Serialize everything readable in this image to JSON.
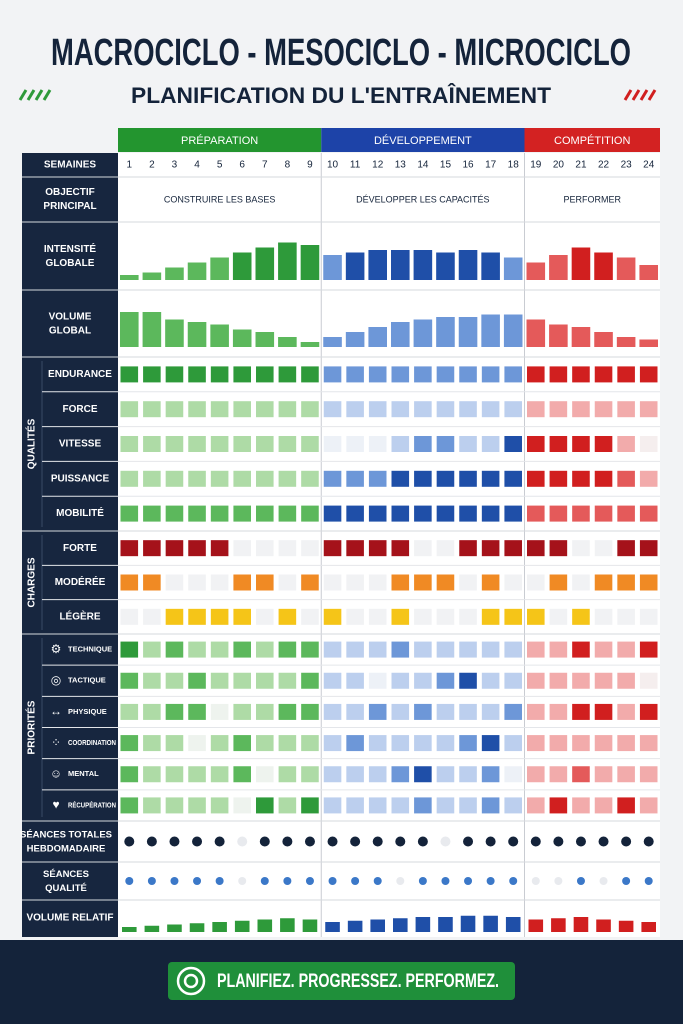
{
  "header": {
    "title": "MACROCICLO - MESOCICLO - MICROCICLO",
    "subtitle": "PLANIFICATION DU L'ENTRAÎNEMENT"
  },
  "phases": [
    {
      "name": "PRÉPARATION",
      "weeks": 9,
      "color": "#23952f",
      "shades": [
        "#eef3ee",
        "#aedba6",
        "#5cb85c",
        "#2e9a3a"
      ],
      "objective": "CONSTRUIRE LES BASES"
    },
    {
      "name": "DÉVELOPPEMENT",
      "weeks": 9,
      "color": "#1d43a8",
      "shades": [
        "#edf1f7",
        "#bccfee",
        "#6d97d8",
        "#1f4fa8"
      ],
      "objective": "DÉVELOPPER LES CAPACITÉS"
    },
    {
      "name": "COMPÉTITION",
      "weeks": 6,
      "color": "#d32222",
      "shades": [
        "#f5eeee",
        "#f2abab",
        "#e45a5a",
        "#d11f1f"
      ],
      "objective": "PERFORMER"
    }
  ],
  "weeks_label": "SEMAINES",
  "weeks": [
    1,
    2,
    3,
    4,
    5,
    6,
    7,
    8,
    9,
    10,
    11,
    12,
    13,
    14,
    15,
    16,
    17,
    18,
    19,
    20,
    21,
    22,
    23,
    24
  ],
  "objective_label": "OBJECTIF PRINCIPAL",
  "bars": [
    {
      "label": "INTENSITÉ GLOBALE",
      "values": [
        1,
        1.5,
        2.5,
        3.5,
        4.5,
        5.5,
        6.5,
        7.5,
        7,
        5,
        5.5,
        6,
        6,
        6,
        5.5,
        6,
        5.5,
        4.5,
        3.5,
        5,
        6.5,
        5.5,
        4.5,
        3
      ]
    },
    {
      "label": "VOLUME GLOBAL",
      "values": [
        7,
        7,
        5.5,
        5,
        4.5,
        3.5,
        3,
        2,
        1,
        2,
        3,
        4,
        5,
        5.5,
        6,
        6,
        6.5,
        6.5,
        5.5,
        4.5,
        4,
        3,
        2,
        1.5
      ]
    }
  ],
  "groups": [
    {
      "name": "QUALITÉS",
      "rows": [
        {
          "label": "ENDURANCE",
          "levels": [
            3,
            3,
            3,
            3,
            3,
            3,
            3,
            3,
            3,
            2,
            2,
            2,
            2,
            2,
            2,
            2,
            2,
            2,
            3,
            3,
            3,
            3,
            3,
            3
          ]
        },
        {
          "label": "FORCE",
          "levels": [
            1,
            1,
            1,
            1,
            1,
            1,
            1,
            1,
            1,
            1,
            1,
            1,
            1,
            1,
            1,
            1,
            1,
            1,
            1,
            1,
            1,
            1,
            1,
            1
          ]
        },
        {
          "label": "VITESSE",
          "levels": [
            1,
            1,
            1,
            1,
            1,
            1,
            1,
            1,
            1,
            0,
            0,
            0,
            1,
            2,
            2,
            1,
            1,
            3,
            3,
            3,
            3,
            3,
            1,
            0
          ]
        },
        {
          "label": "PUISSANCE",
          "levels": [
            1,
            1,
            1,
            1,
            1,
            1,
            1,
            1,
            1,
            2,
            2,
            2,
            3,
            3,
            3,
            3,
            3,
            3,
            3,
            3,
            3,
            3,
            2,
            1
          ]
        },
        {
          "label": "MOBILITÉ",
          "levels": [
            2,
            2,
            2,
            2,
            2,
            2,
            2,
            2,
            2,
            3,
            3,
            3,
            3,
            3,
            3,
            3,
            3,
            3,
            2,
            2,
            2,
            2,
            2,
            2
          ]
        }
      ]
    },
    {
      "name": "CHARGES",
      "rows": [
        {
          "label": "FORTE",
          "color": "#a5121a",
          "levels": [
            1,
            1,
            1,
            1,
            1,
            0,
            0,
            0,
            0,
            1,
            1,
            1,
            1,
            0,
            0,
            1,
            1,
            1,
            1,
            1,
            0,
            0,
            1,
            1
          ]
        },
        {
          "label": "MODÉRÉE",
          "color": "#f08a24",
          "levels": [
            1,
            1,
            0,
            0,
            0,
            1,
            1,
            0,
            1,
            0,
            0,
            0,
            1,
            1,
            1,
            0,
            1,
            0,
            0,
            1,
            0,
            1,
            1,
            1
          ]
        },
        {
          "label": "LÉGÈRE",
          "color": "#f5c518",
          "levels": [
            0,
            0,
            1,
            1,
            1,
            1,
            0,
            1,
            0,
            1,
            0,
            0,
            1,
            0,
            0,
            0,
            1,
            1,
            1,
            0,
            1,
            0,
            0,
            0
          ]
        }
      ]
    },
    {
      "name": "PRIORITÉS",
      "rows": [
        {
          "label": "TECHNIQUE",
          "levels": [
            3,
            1,
            2,
            1,
            1,
            2,
            1,
            2,
            2,
            1,
            1,
            1,
            2,
            1,
            1,
            1,
            1,
            1,
            1,
            1,
            3,
            1,
            1,
            3
          ]
        },
        {
          "label": "TACTIQUE",
          "levels": [
            2,
            1,
            1,
            2,
            1,
            1,
            1,
            1,
            2,
            1,
            1,
            0,
            1,
            1,
            2,
            3,
            1,
            1,
            1,
            1,
            1,
            1,
            1,
            0
          ]
        },
        {
          "label": "PHYSIQUE",
          "levels": [
            1,
            1,
            2,
            2,
            0,
            1,
            1,
            2,
            2,
            1,
            1,
            2,
            1,
            2,
            1,
            1,
            1,
            2,
            1,
            1,
            3,
            3,
            1,
            3
          ]
        },
        {
          "label": "COORDINATION",
          "levels": [
            2,
            1,
            1,
            0,
            1,
            2,
            1,
            1,
            1,
            1,
            2,
            1,
            1,
            1,
            1,
            2,
            3,
            1,
            1,
            1,
            1,
            1,
            1,
            1
          ]
        },
        {
          "label": "MENTAL",
          "levels": [
            2,
            1,
            1,
            1,
            1,
            2,
            0,
            1,
            1,
            1,
            1,
            1,
            2,
            3,
            1,
            1,
            2,
            0,
            1,
            1,
            2,
            1,
            1,
            1
          ]
        },
        {
          "label": "RÉCUPÉRATION",
          "levels": [
            2,
            1,
            1,
            1,
            1,
            0,
            3,
            1,
            3,
            1,
            1,
            1,
            1,
            2,
            1,
            1,
            2,
            1,
            1,
            3,
            1,
            1,
            3,
            1
          ]
        }
      ]
    }
  ],
  "sessions": [
    {
      "label": "SÉANCES TOTALES HEBDOMADAIRE",
      "color": "#14233a",
      "values": [
        1,
        1,
        1,
        1,
        1,
        0,
        1,
        1,
        1,
        1,
        1,
        1,
        1,
        1,
        0,
        1,
        1,
        1,
        1,
        1,
        1,
        1,
        1,
        1
      ]
    },
    {
      "label": "SÉANCES QUALITÉ",
      "color": "#3b78c8",
      "values": [
        1,
        1,
        1,
        1,
        1,
        0,
        1,
        1,
        1,
        1,
        1,
        1,
        0,
        1,
        1,
        1,
        1,
        1,
        0,
        0,
        1,
        0,
        1,
        1
      ]
    }
  ],
  "relative": {
    "label": "VOLUME RELATIF",
    "values": [
      2,
      2.5,
      3,
      3.5,
      4,
      4.5,
      5,
      5.5,
      5,
      4,
      4.5,
      5,
      5.5,
      6,
      6,
      6.5,
      6.5,
      6,
      5,
      5.5,
      6,
      5,
      4.5,
      4
    ]
  },
  "footer": "PLANIFIEZ. PROGRESSEZ. PERFORMEZ."
}
